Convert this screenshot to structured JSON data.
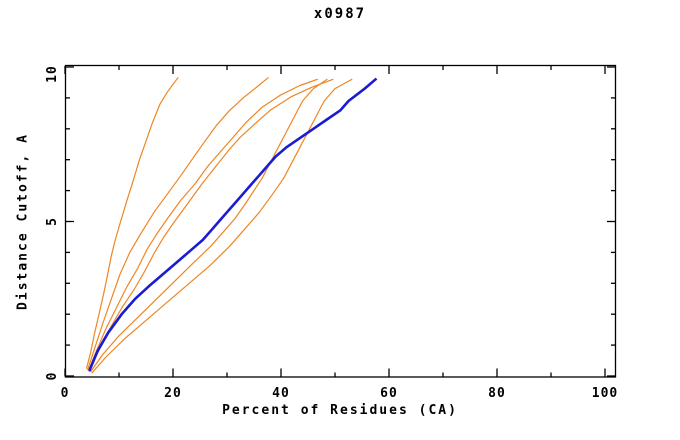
{
  "chart_data": {
    "type": "line",
    "title": "x0987",
    "xlabel": "Percent of Residues (CA)",
    "ylabel": "Distance Cutoff, A",
    "xlim": [
      0,
      101.8
    ],
    "ylim": [
      0,
      10.07
    ],
    "x_major_ticks": [
      0,
      20,
      40,
      60,
      80,
      100
    ],
    "x_minor_ticks": [
      10,
      30,
      50,
      70,
      90
    ],
    "x_tick_labels": [
      "0",
      "20",
      "40",
      "60",
      "80",
      "100"
    ],
    "y_major_ticks": [
      0,
      5,
      10
    ],
    "y_minor_ticks": [
      1,
      2,
      3,
      4,
      6,
      7,
      8,
      9
    ],
    "y_tick_labels": [
      "0",
      "5",
      "10"
    ],
    "grid": false,
    "legend": "none",
    "frame": "box-with-inward-ticks",
    "colors": {
      "comparison": "#ee8622",
      "reference": "#1b1bd1",
      "axis": "#000000",
      "background": "#ffffff"
    },
    "series": [
      {
        "name": "orange-1",
        "color": "#ee8622",
        "width": 1.2,
        "points": [
          [
            4.0,
            0.25
          ],
          [
            4.8,
            0.8
          ],
          [
            5.5,
            1.4
          ],
          [
            6.3,
            2.0
          ],
          [
            7.2,
            2.7
          ],
          [
            7.8,
            3.2
          ],
          [
            8.6,
            3.9
          ],
          [
            9.3,
            4.4
          ],
          [
            10.3,
            5.0
          ],
          [
            11.5,
            5.7
          ],
          [
            12.6,
            6.3
          ],
          [
            13.8,
            7.0
          ],
          [
            15.0,
            7.6
          ],
          [
            16.2,
            8.2
          ],
          [
            17.6,
            8.8
          ],
          [
            19.0,
            9.2
          ],
          [
            20.9,
            9.65
          ]
        ]
      },
      {
        "name": "orange-2",
        "color": "#ee8622",
        "width": 1.2,
        "points": [
          [
            4.2,
            0.2
          ],
          [
            5.5,
            0.9
          ],
          [
            7.0,
            1.7
          ],
          [
            8.6,
            2.5
          ],
          [
            10.2,
            3.3
          ],
          [
            12.0,
            4.0
          ],
          [
            14.0,
            4.6
          ],
          [
            16.5,
            5.3
          ],
          [
            19.0,
            5.9
          ],
          [
            21.5,
            6.5
          ],
          [
            23.5,
            7.0
          ],
          [
            25.5,
            7.5
          ],
          [
            28.0,
            8.1
          ],
          [
            30.5,
            8.6
          ],
          [
            33.0,
            9.0
          ],
          [
            35.5,
            9.35
          ],
          [
            37.6,
            9.65
          ]
        ]
      },
      {
        "name": "orange-3",
        "color": "#ee8622",
        "width": 1.2,
        "points": [
          [
            4.4,
            0.2
          ],
          [
            5.8,
            0.8
          ],
          [
            7.5,
            1.5
          ],
          [
            9.5,
            2.2
          ],
          [
            11.5,
            2.9
          ],
          [
            13.5,
            3.5
          ],
          [
            15.2,
            4.1
          ],
          [
            17.0,
            4.6
          ],
          [
            19.0,
            5.1
          ],
          [
            21.5,
            5.7
          ],
          [
            24.0,
            6.2
          ],
          [
            26.5,
            6.8
          ],
          [
            29.0,
            7.3
          ],
          [
            31.0,
            7.7
          ],
          [
            33.5,
            8.2
          ],
          [
            36.5,
            8.7
          ],
          [
            40.0,
            9.1
          ],
          [
            43.5,
            9.4
          ],
          [
            46.7,
            9.6
          ]
        ]
      },
      {
        "name": "orange-4",
        "color": "#ee8622",
        "width": 1.2,
        "points": [
          [
            4.5,
            0.15
          ],
          [
            6.2,
            0.8
          ],
          [
            8.2,
            1.5
          ],
          [
            10.5,
            2.2
          ],
          [
            12.8,
            2.8
          ],
          [
            14.8,
            3.4
          ],
          [
            16.6,
            4.0
          ],
          [
            18.3,
            4.5
          ],
          [
            20.3,
            5.0
          ],
          [
            22.8,
            5.6
          ],
          [
            25.3,
            6.2
          ],
          [
            28.0,
            6.8
          ],
          [
            30.3,
            7.3
          ],
          [
            32.3,
            7.7
          ],
          [
            34.8,
            8.1
          ],
          [
            38.0,
            8.6
          ],
          [
            42.0,
            9.05
          ],
          [
            45.8,
            9.35
          ],
          [
            49.6,
            9.6
          ]
        ]
      },
      {
        "name": "orange-5",
        "color": "#ee8622",
        "width": 1.2,
        "points": [
          [
            4.8,
            0.15
          ],
          [
            7.0,
            0.7
          ],
          [
            10.0,
            1.3
          ],
          [
            13.5,
            1.9
          ],
          [
            17.0,
            2.5
          ],
          [
            20.5,
            3.1
          ],
          [
            24.0,
            3.7
          ],
          [
            27.0,
            4.2
          ],
          [
            29.5,
            4.7
          ],
          [
            31.5,
            5.1
          ],
          [
            33.5,
            5.6
          ],
          [
            35.0,
            6.0
          ],
          [
            36.5,
            6.4
          ],
          [
            38.0,
            6.9
          ],
          [
            39.5,
            7.4
          ],
          [
            41.0,
            7.9
          ],
          [
            42.5,
            8.4
          ],
          [
            44.0,
            8.9
          ],
          [
            46.0,
            9.3
          ],
          [
            48.5,
            9.6
          ]
        ]
      },
      {
        "name": "orange-6",
        "color": "#ee8622",
        "width": 1.2,
        "points": [
          [
            5.0,
            0.1
          ],
          [
            7.5,
            0.6
          ],
          [
            11.0,
            1.2
          ],
          [
            15.0,
            1.8
          ],
          [
            19.0,
            2.4
          ],
          [
            23.0,
            3.0
          ],
          [
            27.0,
            3.6
          ],
          [
            30.5,
            4.2
          ],
          [
            33.5,
            4.8
          ],
          [
            36.0,
            5.3
          ],
          [
            38.5,
            5.9
          ],
          [
            40.5,
            6.4
          ],
          [
            42.0,
            6.9
          ],
          [
            43.5,
            7.4
          ],
          [
            45.0,
            7.9
          ],
          [
            46.5,
            8.4
          ],
          [
            48.0,
            8.9
          ],
          [
            50.0,
            9.3
          ],
          [
            53.1,
            9.6
          ]
        ]
      },
      {
        "name": "blue-main",
        "color": "#1b1bd1",
        "width": 2.6,
        "points": [
          [
            4.6,
            0.2
          ],
          [
            6.0,
            0.8
          ],
          [
            8.0,
            1.4
          ],
          [
            10.5,
            2.0
          ],
          [
            13.0,
            2.5
          ],
          [
            15.5,
            2.9
          ],
          [
            17.5,
            3.2
          ],
          [
            19.5,
            3.5
          ],
          [
            21.5,
            3.8
          ],
          [
            23.5,
            4.1
          ],
          [
            25.5,
            4.4
          ],
          [
            27.0,
            4.7
          ],
          [
            28.5,
            5.0
          ],
          [
            30.0,
            5.3
          ],
          [
            31.5,
            5.6
          ],
          [
            33.0,
            5.9
          ],
          [
            34.5,
            6.2
          ],
          [
            36.0,
            6.5
          ],
          [
            37.5,
            6.8
          ],
          [
            39.0,
            7.1
          ],
          [
            41.0,
            7.4
          ],
          [
            43.5,
            7.7
          ],
          [
            46.0,
            8.0
          ],
          [
            48.5,
            8.3
          ],
          [
            51.0,
            8.6
          ],
          [
            52.5,
            8.9
          ],
          [
            54.0,
            9.1
          ],
          [
            55.5,
            9.3
          ],
          [
            56.5,
            9.45
          ],
          [
            57.5,
            9.6
          ]
        ]
      }
    ]
  }
}
